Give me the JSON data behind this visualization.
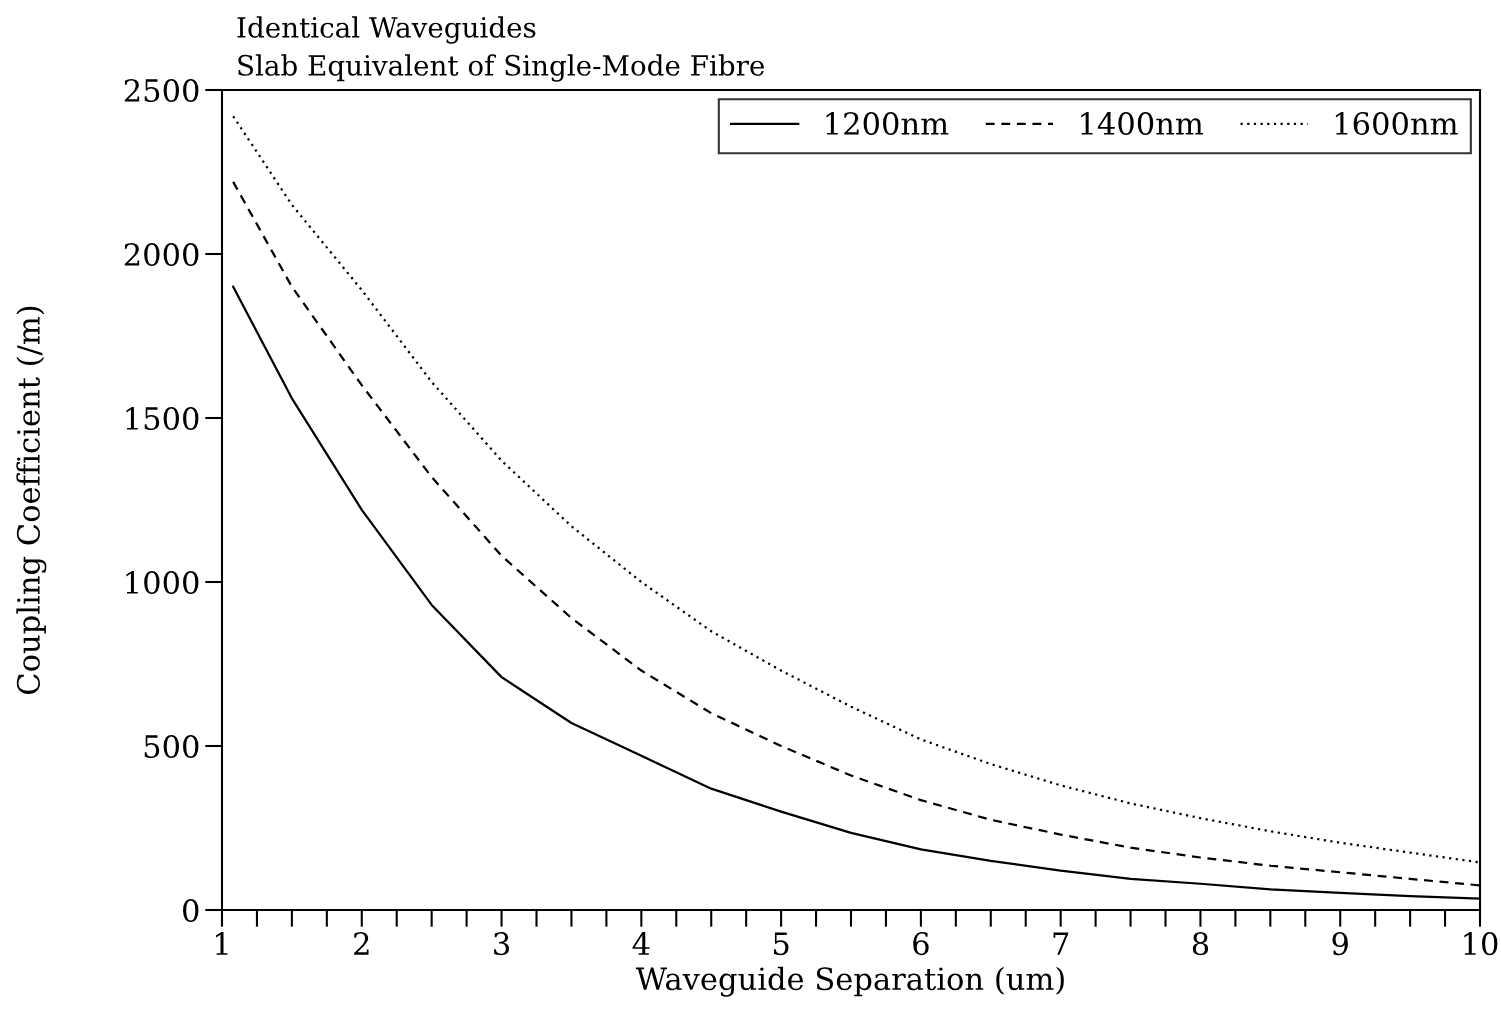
{
  "chart_data": {
    "type": "line",
    "title": "Identical Waveguides",
    "subtitle": "Slab Equivalent of Single-Mode Fibre",
    "xlabel": "Waveguide Separation (um)",
    "ylabel": "Coupling Coefficient (/m)",
    "x": [
      1.08,
      1.5,
      2,
      2.5,
      3,
      3.5,
      4,
      4.5,
      5,
      5.5,
      6,
      6.5,
      7,
      7.5,
      8,
      8.5,
      9,
      9.5,
      10
    ],
    "series": [
      {
        "name": "1200nm",
        "color": "#000000",
        "line_style": "solid",
        "values": [
          1900,
          1560,
          1220,
          930,
          710,
          570,
          470,
          370,
          300,
          235,
          185,
          150,
          120,
          95,
          80,
          63,
          52,
          42,
          35
        ]
      },
      {
        "name": "1400nm",
        "color": "#000000",
        "line_style": "dashed",
        "values": [
          2220,
          1900,
          1600,
          1320,
          1080,
          890,
          730,
          600,
          500,
          410,
          335,
          275,
          230,
          190,
          160,
          135,
          115,
          95,
          75
        ]
      },
      {
        "name": "1600nm",
        "color": "#000000",
        "line_style": "dotted",
        "values": [
          2420,
          2150,
          1890,
          1610,
          1370,
          1170,
          1000,
          850,
          730,
          620,
          520,
          445,
          380,
          325,
          280,
          240,
          205,
          175,
          145
        ]
      }
    ],
    "xlim": [
      1,
      10
    ],
    "xticks": [
      1,
      2,
      3,
      4,
      5,
      6,
      7,
      8,
      9,
      10
    ],
    "ylim": [
      0,
      2500
    ],
    "yticks": [
      0,
      500,
      1000,
      1500,
      2000,
      2500
    ],
    "grid": false,
    "legend": "top right",
    "marker": "none"
  }
}
